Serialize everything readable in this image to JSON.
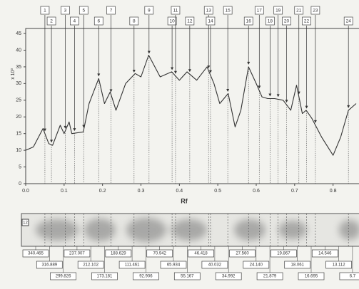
{
  "chart_data": {
    "type": "line",
    "y_label": "x 10³",
    "x_label": "Rf",
    "x": [
      0.0,
      0.02,
      0.045,
      0.06,
      0.07,
      0.09,
      0.1,
      0.113,
      0.12,
      0.15,
      0.165,
      0.19,
      0.205,
      0.22,
      0.235,
      0.26,
      0.285,
      0.3,
      0.32,
      0.35,
      0.38,
      0.4,
      0.42,
      0.445,
      0.472,
      0.49,
      0.505,
      0.527,
      0.545,
      0.56,
      0.58,
      0.6,
      0.615,
      0.63,
      0.648,
      0.67,
      0.69,
      0.705,
      0.72,
      0.73,
      0.745,
      0.77,
      0.8,
      0.82,
      0.84,
      0.86
    ],
    "values": [
      10,
      11,
      16.5,
      12,
      11.5,
      17.5,
      15,
      18.5,
      15,
      15.5,
      24,
      31.5,
      24,
      27.5,
      22,
      30,
      33,
      32,
      38.5,
      32,
      33.5,
      31,
      33.5,
      31,
      35,
      30,
      24,
      27,
      17,
      22,
      35,
      30,
      26,
      25.5,
      25.5,
      25,
      22,
      29.5,
      21,
      22,
      19.5,
      14,
      8.5,
      14,
      22,
      24
    ],
    "color": "#333333",
    "xlim": [
      0,
      0.8675
    ],
    "ylim": [
      0,
      46.5
    ],
    "xticks": [
      {
        "value": 0,
        "label": "0.0"
      },
      {
        "value": 0.1,
        "label": "0.1"
      },
      {
        "value": 0.2,
        "label": "0.2"
      },
      {
        "value": 0.3,
        "label": "0.3"
      },
      {
        "value": 0.4,
        "label": "0.4"
      },
      {
        "value": 0.5,
        "label": "0.5"
      },
      {
        "value": 0.6,
        "label": "0.6"
      },
      {
        "value": 0.7,
        "label": "0.7"
      },
      {
        "value": 0.8,
        "label": "0.8"
      }
    ],
    "yticks": [
      0,
      5,
      10,
      15,
      20,
      25,
      30,
      35,
      40,
      45
    ],
    "peaks": [
      {
        "label": "1",
        "rf": 0.05
      },
      {
        "label": "2",
        "rf": 0.067
      },
      {
        "label": "3",
        "rf": 0.103
      },
      {
        "label": "4",
        "rf": 0.127
      },
      {
        "label": "5",
        "rf": 0.151
      },
      {
        "label": "6",
        "rf": 0.19
      },
      {
        "label": "7",
        "rf": 0.222
      },
      {
        "label": "8",
        "rf": 0.282
      },
      {
        "label": "9",
        "rf": 0.321
      },
      {
        "label": "10",
        "rf": 0.381
      },
      {
        "label": "11",
        "rf": 0.39
      },
      {
        "label": "12",
        "rf": 0.427
      },
      {
        "label": "13",
        "rf": 0.476
      },
      {
        "label": "14",
        "rf": 0.481
      },
      {
        "label": "15",
        "rf": 0.526
      },
      {
        "label": "16",
        "rf": 0.58
      },
      {
        "label": "17",
        "rf": 0.608
      },
      {
        "label": "18",
        "rf": 0.636
      },
      {
        "label": "19",
        "rf": 0.657
      },
      {
        "label": "20",
        "rf": 0.679
      },
      {
        "label": "21",
        "rf": 0.711
      },
      {
        "label": "22",
        "rf": 0.731
      },
      {
        "label": "23",
        "rf": 0.754
      },
      {
        "label": "24",
        "rf": 0.84
      }
    ],
    "lane": {
      "label": "12",
      "bands": [
        "340.465",
        "316.889",
        "299.826",
        "237.007",
        "212.102",
        "173.181",
        "188.629",
        "111.461",
        "92.906",
        "70.942",
        "65.934",
        "55.167",
        "46.418",
        "40.032",
        "34.992",
        "27.560",
        "24.140",
        "21.879",
        "19.867",
        "18.061",
        "16.695",
        "14.546",
        "13.112",
        "6.7"
      ]
    }
  }
}
